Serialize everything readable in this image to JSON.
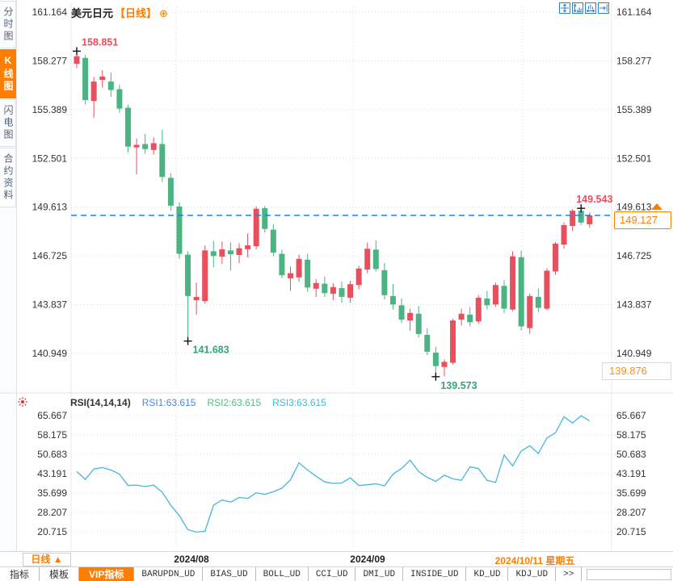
{
  "header": {
    "title": "美元日元",
    "period_tag": "【日线】",
    "add_glyph": "⊕"
  },
  "sidebar": {
    "items": [
      {
        "label": "分时图",
        "active": false
      },
      {
        "label": "K线图",
        "active": true
      },
      {
        "label": "闪电图",
        "active": false
      },
      {
        "label": "合约资料",
        "active": false
      }
    ]
  },
  "toolbar": {
    "icons": [
      {
        "name": "pan-icon"
      },
      {
        "name": "y-axis-scale-icon"
      },
      {
        "name": "x-axis-scale-icon"
      },
      {
        "name": "go-to-latest-icon"
      }
    ]
  },
  "colors": {
    "up": "#e9505e",
    "down": "#4cb483",
    "grid": "#dcdcdc",
    "axis_text": "#333333",
    "accent_orange": "#ff7e00",
    "price_line_blue": "#1f80e8",
    "rsi_line": "#45b8da",
    "annotation_red": "#ef4c5e",
    "annotation_green": "#35a576",
    "icon_blue": "#2a7fd4",
    "marker_black": "#111111"
  },
  "price_tags": {
    "current": "149.127",
    "lower": "139.876"
  },
  "xaxis": {
    "labels": [
      {
        "text": "2024/08",
        "x": 237,
        "color": "#222222"
      },
      {
        "text": "2024/09",
        "x": 455,
        "color": "#222222"
      },
      {
        "text": "2024/10/11 星期五",
        "x": 662,
        "color": "#ff7e00"
      }
    ]
  },
  "period_selector": {
    "label": "日线 ▲"
  },
  "bottom_tabs": {
    "items": [
      {
        "label": "指标",
        "active": false,
        "mono": false
      },
      {
        "label": "模板",
        "active": false,
        "mono": false
      },
      {
        "label": "VIP指标",
        "active": true,
        "mono": false
      },
      {
        "label": "BARUPDN_UD",
        "active": false,
        "mono": true
      },
      {
        "label": "BIAS_UD",
        "active": false,
        "mono": true
      },
      {
        "label": "BOLL_UD",
        "active": false,
        "mono": true
      },
      {
        "label": "CCI_UD",
        "active": false,
        "mono": true
      },
      {
        "label": "DMI_UD",
        "active": false,
        "mono": true
      },
      {
        "label": "INSIDE_UD",
        "active": false,
        "mono": true
      },
      {
        "label": "KD_UD",
        "active": false,
        "mono": true
      },
      {
        "label": "KDJ_UD",
        "active": false,
        "mono": true
      },
      {
        "label": ">>",
        "active": false,
        "mono": true
      }
    ]
  },
  "chart_data": [
    {
      "type": "candlestick",
      "title": "美元日元 日线",
      "y_ticks": [
        161.164,
        158.277,
        155.389,
        152.501,
        149.613,
        146.725,
        143.837,
        140.949
      ],
      "ylim": [
        139.0,
        161.8
      ],
      "grid": true,
      "current_price": 149.127,
      "candles_ohlc": [
        [
          158.1,
          158.851,
          157.85,
          158.55
        ],
        [
          158.45,
          158.62,
          155.7,
          155.95
        ],
        [
          155.9,
          157.32,
          154.9,
          157.05
        ],
        [
          157.15,
          157.72,
          156.68,
          157.35
        ],
        [
          157.05,
          157.6,
          156.15,
          156.55
        ],
        [
          156.6,
          156.88,
          155.2,
          155.45
        ],
        [
          155.5,
          155.68,
          152.85,
          153.2
        ],
        [
          153.15,
          153.68,
          151.55,
          153.3
        ],
        [
          153.35,
          153.95,
          152.78,
          153.05
        ],
        [
          153.0,
          153.75,
          152.72,
          153.4
        ],
        [
          153.35,
          154.2,
          151.1,
          151.4
        ],
        [
          151.35,
          151.62,
          149.4,
          149.7
        ],
        [
          149.65,
          149.9,
          146.55,
          146.85
        ],
        [
          146.8,
          147.0,
          141.683,
          144.35
        ],
        [
          144.1,
          145.15,
          143.25,
          144.3
        ],
        [
          144.05,
          147.35,
          143.9,
          147.05
        ],
        [
          147.0,
          147.62,
          146.05,
          146.72
        ],
        [
          146.68,
          147.58,
          146.25,
          147.12
        ],
        [
          147.05,
          147.52,
          145.85,
          146.82
        ],
        [
          146.78,
          147.48,
          146.3,
          147.18
        ],
        [
          147.12,
          148.05,
          146.65,
          147.35
        ],
        [
          147.3,
          149.66,
          147.12,
          149.52
        ],
        [
          149.55,
          149.68,
          148.1,
          148.32
        ],
        [
          148.28,
          148.6,
          146.7,
          146.92
        ],
        [
          146.85,
          147.1,
          145.4,
          145.58
        ],
        [
          145.4,
          146.1,
          144.65,
          145.7
        ],
        [
          145.45,
          146.8,
          145.2,
          146.55
        ],
        [
          146.5,
          146.85,
          144.6,
          144.85
        ],
        [
          144.78,
          145.35,
          144.3,
          145.12
        ],
        [
          145.08,
          145.5,
          144.3,
          144.52
        ],
        [
          144.48,
          145.1,
          144.1,
          144.88
        ],
        [
          144.82,
          145.2,
          143.95,
          144.3
        ],
        [
          144.25,
          145.25,
          143.95,
          145.05
        ],
        [
          145.0,
          146.15,
          144.75,
          145.98
        ],
        [
          145.92,
          147.5,
          145.7,
          147.15
        ],
        [
          147.1,
          147.65,
          145.8,
          145.95
        ],
        [
          145.88,
          146.3,
          144.15,
          144.4
        ],
        [
          144.35,
          145.05,
          143.55,
          143.85
        ],
        [
          143.8,
          144.2,
          142.75,
          142.95
        ],
        [
          142.9,
          143.6,
          142.3,
          143.35
        ],
        [
          143.3,
          143.75,
          141.9,
          142.1
        ],
        [
          142.05,
          142.45,
          140.85,
          141.05
        ],
        [
          141.0,
          141.35,
          139.573,
          140.2
        ],
        [
          140.15,
          140.6,
          139.6,
          140.45
        ],
        [
          140.4,
          143.0,
          140.3,
          142.9
        ],
        [
          142.95,
          143.6,
          142.6,
          143.3
        ],
        [
          143.25,
          143.7,
          142.55,
          142.8
        ],
        [
          142.85,
          144.4,
          142.7,
          144.25
        ],
        [
          144.2,
          144.65,
          143.55,
          143.8
        ],
        [
          143.85,
          145.15,
          143.7,
          145.0
        ],
        [
          144.95,
          145.3,
          143.35,
          143.6
        ],
        [
          143.55,
          147.0,
          143.45,
          146.7
        ],
        [
          146.65,
          147.05,
          142.3,
          142.55
        ],
        [
          142.45,
          144.5,
          142.1,
          144.35
        ],
        [
          144.3,
          144.8,
          143.4,
          143.65
        ],
        [
          143.6,
          146.0,
          143.5,
          145.85
        ],
        [
          145.8,
          147.55,
          145.6,
          147.45
        ],
        [
          147.4,
          148.7,
          147.15,
          148.55
        ],
        [
          148.5,
          149.5,
          148.2,
          149.4
        ],
        [
          149.4,
          149.543,
          148.55,
          148.7
        ],
        [
          148.6,
          149.3,
          148.4,
          149.127
        ]
      ],
      "annotations": [
        {
          "candle": 0,
          "point": "high",
          "label": "158.851",
          "placement": "above",
          "color": "#ef4c5e"
        },
        {
          "candle": 13,
          "point": "low",
          "label": "141.683",
          "placement": "below",
          "color": "#35a576"
        },
        {
          "candle": 42,
          "point": "low",
          "label": "139.573",
          "placement": "below",
          "color": "#35a576"
        },
        {
          "candle": 59,
          "point": "high",
          "label": "149.543",
          "placement": "above",
          "color": "#ef4c5e"
        }
      ]
    },
    {
      "type": "line",
      "title": "RSI(14,14,14)",
      "legend": [
        {
          "label": "RSI1:63.615",
          "color": "#4a86e8"
        },
        {
          "label": "RSI2:63.615",
          "color": "#57bb8a"
        },
        {
          "label": "RSI3:63.615",
          "color": "#45b8da"
        }
      ],
      "y_ticks": [
        65.667,
        58.175,
        50.683,
        43.191,
        35.699,
        28.207,
        20.715
      ],
      "ylim": [
        18,
        70
      ],
      "grid": true,
      "values": [
        44.0,
        41.0,
        45.0,
        45.6,
        44.6,
        43.0,
        38.6,
        38.8,
        38.2,
        38.8,
        36.0,
        31.0,
        27.0,
        21.5,
        20.6,
        20.9,
        31.0,
        33.0,
        32.2,
        34.0,
        33.6,
        35.8,
        35.2,
        36.2,
        37.6,
        40.8,
        47.4,
        44.6,
        42.2,
        40.0,
        39.4,
        39.6,
        41.6,
        38.6,
        38.9,
        39.3,
        38.5,
        43.0,
        45.2,
        48.4,
        44.0,
        41.8,
        40.2,
        42.6,
        41.2,
        40.6,
        45.8,
        45.2,
        40.6,
        39.8,
        50.4,
        46.2,
        52.0,
        54.0,
        51.0,
        57.0,
        59.0,
        65.2,
        62.8,
        65.6,
        63.615
      ]
    }
  ]
}
